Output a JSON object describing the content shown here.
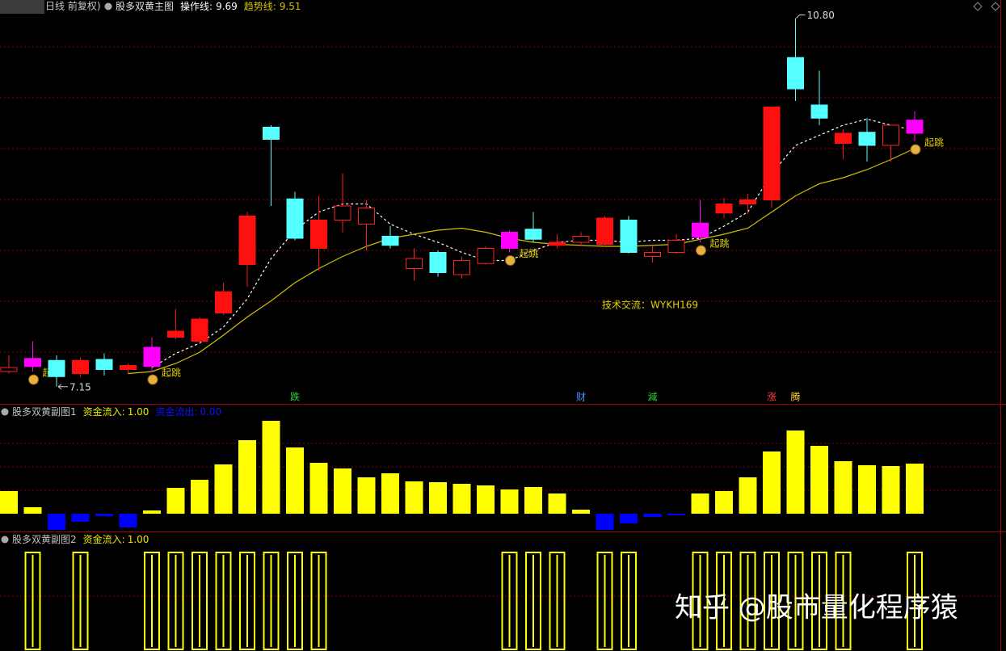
{
  "chart_data": [
    {
      "type": "candlestick",
      "subtitle": "日线 前复权)",
      "title": "股多双黄主图",
      "open": [
        7.3,
        7.35,
        7.41,
        7.28,
        7.42,
        7.32,
        7.35,
        7.64,
        7.6,
        7.88,
        8.36,
        9.72,
        9.01,
        8.52,
        8.8,
        8.76,
        8.64,
        8.32,
        8.48,
        8.26,
        8.37,
        8.52,
        8.71,
        8.55,
        8.58,
        8.56,
        8.8,
        8.44,
        8.48,
        8.63,
        8.87,
        8.96,
        9.0,
        10.41,
        9.94,
        9.56,
        9.67,
        9.54,
        9.66
      ],
      "high": [
        7.46,
        7.6,
        7.46,
        7.44,
        7.48,
        7.38,
        7.64,
        7.92,
        7.84,
        8.18,
        8.88,
        9.74,
        9.08,
        9.04,
        9.26,
        9.0,
        8.74,
        8.52,
        8.5,
        8.44,
        8.54,
        8.7,
        8.88,
        8.66,
        8.68,
        8.84,
        8.84,
        8.54,
        8.66,
        9.0,
        9.02,
        9.06,
        9.92,
        10.8,
        10.28,
        9.7,
        9.81,
        9.74,
        9.88
      ],
      "low": [
        7.28,
        7.3,
        7.15,
        7.25,
        7.26,
        7.28,
        7.3,
        7.62,
        7.58,
        7.86,
        8.14,
        8.94,
        8.6,
        8.3,
        8.68,
        8.5,
        8.52,
        8.2,
        8.24,
        8.22,
        8.36,
        8.48,
        8.58,
        8.52,
        8.54,
        8.54,
        8.47,
        8.38,
        8.47,
        8.58,
        8.82,
        8.86,
        8.92,
        9.98,
        9.74,
        9.4,
        9.38,
        9.38,
        9.58
      ],
      "close": [
        7.34,
        7.43,
        7.25,
        7.41,
        7.32,
        7.36,
        7.54,
        7.7,
        7.82,
        8.09,
        8.84,
        9.6,
        8.62,
        8.8,
        8.94,
        8.92,
        8.55,
        8.42,
        8.28,
        8.4,
        8.52,
        8.68,
        8.61,
        8.58,
        8.64,
        8.82,
        8.48,
        8.48,
        8.6,
        8.77,
        8.96,
        9.0,
        9.92,
        10.1,
        9.81,
        9.66,
        9.54,
        9.74,
        9.79
      ],
      "candle_styles": [
        "up-hollow",
        "signal",
        "down",
        "up",
        "down",
        "up",
        "signal",
        "up",
        "up",
        "up",
        "up",
        "down",
        "down",
        "up",
        "up-hollow",
        "up-hollow",
        "down",
        "up-hollow",
        "down",
        "up-hollow",
        "up-hollow",
        "signal",
        "down",
        "up",
        "up-hollow",
        "up",
        "down",
        "up-hollow",
        "up-hollow",
        "signal",
        "up",
        "up",
        "up",
        "down",
        "down",
        "up",
        "down",
        "up-hollow",
        "signal"
      ],
      "styles": {
        "up": {
          "fill": "#ff1010",
          "stroke": "#ff1010"
        },
        "up-hollow": {
          "fill": "#000000",
          "stroke": "#ff2020"
        },
        "down": {
          "fill": "#54ffff",
          "stroke": "#54ffff"
        },
        "signal": {
          "fill": "#ff00ff",
          "stroke": "#ff00ff"
        }
      },
      "series": [
        {
          "name": "操作线:",
          "color": "#ffffff",
          "dashed": true,
          "values": [
            null,
            null,
            null,
            null,
            null,
            null,
            7.34,
            7.48,
            7.58,
            7.74,
            8.02,
            8.42,
            8.7,
            8.88,
            8.96,
            8.96,
            8.76,
            8.66,
            8.58,
            8.48,
            8.4,
            8.4,
            8.5,
            8.58,
            8.6,
            8.6,
            8.58,
            8.6,
            8.6,
            8.62,
            8.74,
            8.88,
            9.26,
            9.54,
            9.64,
            9.74,
            9.8,
            9.74,
            9.69
          ]
        },
        {
          "name": "趋势线:",
          "color": "#d2c000",
          "dashed": false,
          "values": [
            null,
            null,
            null,
            null,
            null,
            7.28,
            7.3,
            7.38,
            7.49,
            7.66,
            7.84,
            8.0,
            8.18,
            8.32,
            8.44,
            8.54,
            8.62,
            8.66,
            8.7,
            8.72,
            8.68,
            8.62,
            8.58,
            8.56,
            8.55,
            8.54,
            8.54,
            8.55,
            8.56,
            8.61,
            8.66,
            8.72,
            8.88,
            9.04,
            9.16,
            9.22,
            9.3,
            9.4,
            9.51
          ]
        }
      ],
      "ylim": [
        6.98,
        10.98
      ],
      "max_label": "10.80",
      "min_label": "7.15",
      "signal_label": "起跳",
      "event_labels": [
        null,
        null,
        null,
        null,
        null,
        null,
        null,
        null,
        null,
        null,
        null,
        null,
        "跌",
        null,
        null,
        null,
        null,
        null,
        null,
        null,
        null,
        null,
        null,
        null,
        "财",
        null,
        null,
        "減",
        null,
        null,
        null,
        null,
        "涨",
        "腾",
        null,
        null,
        null,
        null,
        null
      ],
      "event_colors": {
        "跌": "#30d040",
        "财": "#4a90ff",
        "減": "#30d040",
        "涨": "#ff4040",
        "腾": "#ffd040"
      }
    },
    {
      "type": "bar",
      "title": "股多双黄副图1",
      "legend": [
        {
          "name": "资金流入:",
          "label": "1.00",
          "color": "#e8e800"
        },
        {
          "name": "资金流出:",
          "label": "0.00",
          "color": "#1010ff"
        }
      ],
      "values": [
        2.8,
        0.8,
        -2.0,
        -1.0,
        -0.3,
        -1.7,
        0.4,
        3.2,
        4.2,
        6.1,
        9.1,
        11.5,
        8.2,
        6.3,
        5.6,
        4.5,
        5.0,
        4.0,
        3.9,
        3.7,
        3.5,
        3.0,
        3.3,
        2.5,
        0.5,
        -2.0,
        -1.2,
        -0.4,
        -0.2,
        2.5,
        2.8,
        4.5,
        7.7,
        10.3,
        8.4,
        6.5,
        6.0,
        5.9,
        6.2
      ],
      "color": "#ffff00",
      "negative_color": "#0000ff",
      "ylim": [
        -2.2,
        13.4
      ]
    },
    {
      "type": "bar",
      "style": "outline",
      "title": "股多双黄副图2",
      "legend": [
        {
          "name": "资金流入:",
          "label": "1.00",
          "color": "#e8e800"
        }
      ],
      "values": [
        0,
        1,
        0,
        1,
        0,
        0,
        1,
        1,
        1,
        1,
        1,
        1,
        1,
        1,
        0,
        0,
        0,
        0,
        0,
        0,
        0,
        1,
        1,
        1,
        0,
        1,
        1,
        0,
        0,
        1,
        1,
        1,
        1,
        1,
        1,
        1,
        0,
        0,
        1
      ],
      "color": "#ffff00",
      "ylim": [
        0,
        1.2
      ]
    }
  ],
  "note": "技术交流：WYKH169",
  "watermark": "知乎 @股市量化程序猿"
}
